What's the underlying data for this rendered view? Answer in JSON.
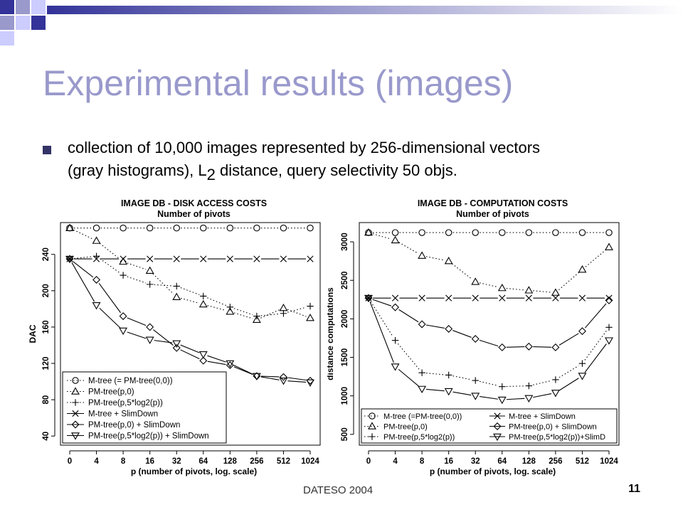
{
  "slide": {
    "title": "Experimental results (images)",
    "bullet_line1": "collection of 10,000 images represented by 256-dimensional vectors",
    "bullet_line2_a": "(gray histograms), L",
    "bullet_line2_sub": "2",
    "bullet_line2_b": " distance, query selectivity 50 objs.",
    "footer": "DATESO 2004",
    "page_number": "11",
    "accent_color": "#9999cc",
    "deco_colors": [
      "#333399",
      "#9999cc",
      "#ccccff"
    ]
  },
  "chart_data": [
    {
      "type": "line",
      "title": "IMAGE DB - DISK ACCESS COSTS",
      "subtitle": "Number of pivots",
      "xlabel": "p (number of pivots, log. scale)",
      "ylabel": "DAC",
      "x_ticks": [
        "0",
        "4",
        "8",
        "16",
        "32",
        "64",
        "128",
        "256",
        "512",
        "1024"
      ],
      "y_ticks": [
        40,
        80,
        120,
        160,
        200,
        240
      ],
      "ylim": [
        30,
        275
      ],
      "log_x": true,
      "grid": false,
      "legend_position": "bottom-left",
      "series": [
        {
          "name": "M-tree (= PM-tree(0,0))",
          "marker": "circle",
          "dash": "dotted",
          "values": [
            269,
            269,
            269,
            269,
            269,
            269,
            269,
            269,
            269,
            269
          ]
        },
        {
          "name": "PM-tree(p,0)",
          "marker": "triangle",
          "dash": "dotted",
          "values": [
            269,
            255,
            232,
            222,
            193,
            185,
            177,
            168,
            181,
            170
          ]
        },
        {
          "name": "PM-tree(p,5*log2(p))",
          "marker": "plus",
          "dash": "dotted",
          "values": [
            235,
            238,
            217,
            207,
            205,
            194,
            182,
            172,
            175,
            183
          ]
        },
        {
          "name": "M-tree + SlimDown",
          "marker": "x",
          "dash": "solid",
          "values": [
            235,
            235,
            235,
            235,
            235,
            235,
            235,
            235,
            235,
            235
          ]
        },
        {
          "name": "PM-tree(p,0) + SlimDown",
          "marker": "diamond",
          "dash": "solid",
          "values": [
            235,
            212,
            172,
            160,
            137,
            123,
            118,
            106,
            105,
            101
          ]
        },
        {
          "name": "PM-tree(p,5*log2(p)) + SlimDown",
          "marker": "dtriangle",
          "dash": "solid",
          "values": [
            235,
            184,
            156,
            146,
            142,
            130,
            120,
            106,
            101,
            99
          ]
        }
      ]
    },
    {
      "type": "line",
      "title": "IMAGE DB - COMPUTATION COSTS",
      "subtitle": "Number of pivots",
      "xlabel": "p (number of pivots, log. scale)",
      "ylabel": "distance computations",
      "x_ticks": [
        "0",
        "4",
        "8",
        "16",
        "32",
        "64",
        "128",
        "256",
        "512",
        "1024"
      ],
      "y_ticks": [
        500,
        1000,
        1500,
        2000,
        2500,
        3000
      ],
      "ylim": [
        360,
        3250
      ],
      "log_x": true,
      "grid": false,
      "legend_position": "bottom-left",
      "series": [
        {
          "name": "M-tree (=PM-tree(0,0))",
          "marker": "circle",
          "dash": "dotted",
          "values": [
            3120,
            3120,
            3120,
            3120,
            3120,
            3120,
            3120,
            3120,
            3120,
            3120
          ]
        },
        {
          "name": "PM-tree(p,0)",
          "marker": "triangle",
          "dash": "dotted",
          "values": [
            3120,
            3020,
            2820,
            2750,
            2480,
            2400,
            2370,
            2340,
            2640,
            2930
          ]
        },
        {
          "name": "PM-tree(p,5*log2(p))",
          "marker": "plus",
          "dash": "dotted",
          "values": [
            2270,
            1720,
            1300,
            1270,
            1200,
            1120,
            1130,
            1210,
            1420,
            1890
          ]
        },
        {
          "name": "M-tree + SlimDown",
          "marker": "x",
          "dash": "solid",
          "values": [
            2270,
            2270,
            2270,
            2270,
            2270,
            2270,
            2270,
            2270,
            2270,
            2270
          ]
        },
        {
          "name": "PM-tree(p,0) + SlimDown",
          "marker": "diamond",
          "dash": "solid",
          "values": [
            2270,
            2150,
            1930,
            1870,
            1740,
            1630,
            1640,
            1630,
            1840,
            2240
          ]
        },
        {
          "name": "PM-tree(p,5*log2(p))+SlimD",
          "marker": "dtriangle",
          "dash": "solid",
          "values": [
            2270,
            1380,
            1090,
            1060,
            1000,
            950,
            970,
            1040,
            1260,
            1720
          ]
        }
      ]
    }
  ]
}
